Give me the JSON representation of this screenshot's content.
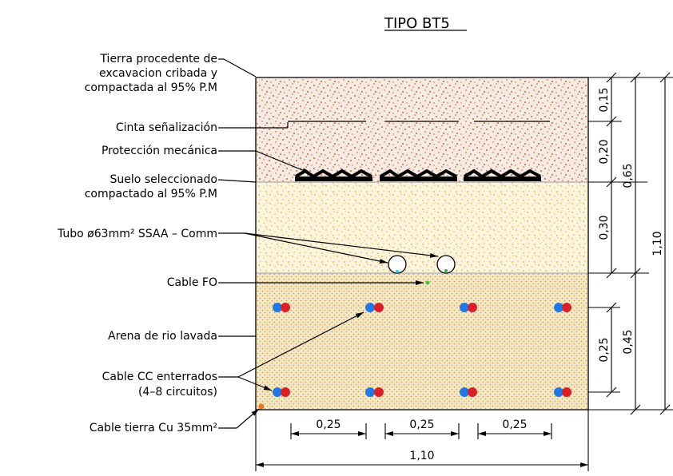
{
  "title": "TIPO BT5",
  "labels": {
    "tierra_l1": "Tierra procedente de",
    "tierra_l2": "excavacion cribada y",
    "tierra_l3": "compactada al 95% P.M",
    "cinta": "Cinta señalización",
    "proteccion": "Protección mecánica",
    "suelo_l1": "Suelo seleccionado",
    "suelo_l2": "compactado al 95% P.M",
    "tubo": "Tubo ø63mm² SSAA – Comm",
    "cable_fo": "Cable FO",
    "arena": "Arena de rio lavada",
    "cable_cc_l1": "Cable CC enterrados",
    "cable_cc_l2": "(4–8 circuitos)",
    "cable_tierra": "Cable tierra Cu 35mm²"
  },
  "dimensions": {
    "right_inner": [
      "0,15",
      "0,20",
      "0,30",
      "0,25"
    ],
    "right_mid": [
      "0,65",
      "0,45"
    ],
    "right_outer": "1,10",
    "bottom_spacing": [
      "0,25",
      "0,25",
      "0,25"
    ],
    "bottom_total": "1,10"
  },
  "colors": {
    "top_fill": "#f4e6dc",
    "top_dots": "#c8643c",
    "mid_fill": "#fcf0d2",
    "mid_dots": "#e0b84c",
    "bottom_fill": "#f3e5c2",
    "bottom_dots": "#c89a3e",
    "cable_blue": "#1e78e6",
    "cable_red": "#dc1e28",
    "fo_green": "#33cc33",
    "ground_orange": "#e6781e"
  }
}
